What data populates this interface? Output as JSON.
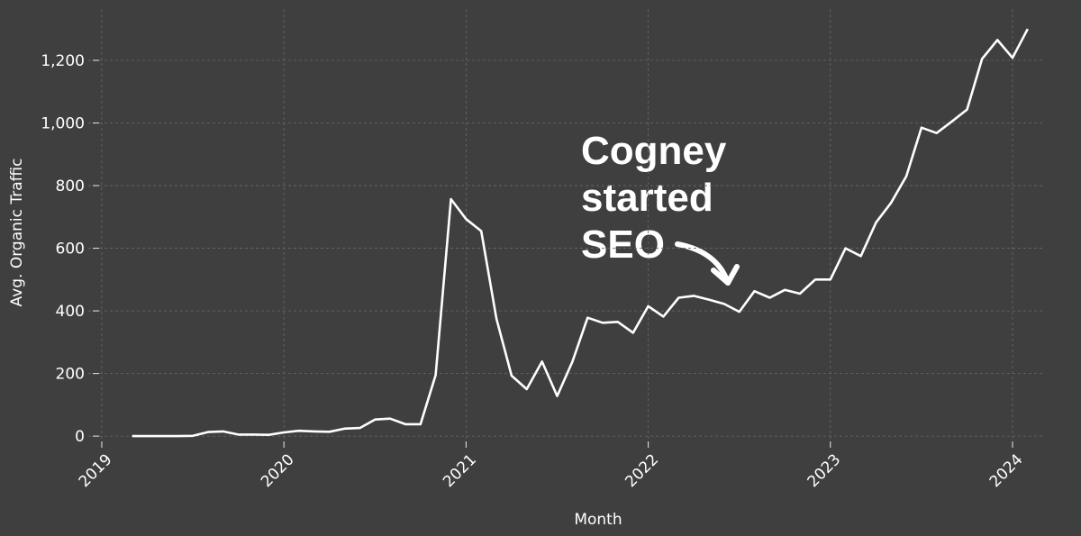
{
  "chart_data": {
    "type": "line",
    "x_label": "Month",
    "y_label": "Avg. Organic Traffic",
    "annotation": [
      "Cogney",
      "started",
      "SEO"
    ],
    "grid": true,
    "xlim": [
      2018.926,
      2024.178
    ],
    "xticks": [
      2019,
      2020,
      2021,
      2022,
      2023,
      2024
    ],
    "ylim": [
      -37,
      1364
    ],
    "yticks": [
      0,
      200,
      400,
      600,
      800,
      {
        "value": 1000,
        "label": "1,000"
      },
      {
        "value": 1200,
        "label": "1,200"
      }
    ],
    "x": [
      2019.167,
      2019.25,
      2019.333,
      2019.417,
      2019.5,
      2019.583,
      2019.667,
      2019.75,
      2019.833,
      2019.917,
      2020.0,
      2020.083,
      2020.167,
      2020.25,
      2020.333,
      2020.417,
      2020.5,
      2020.583,
      2020.667,
      2020.75,
      2020.833,
      2020.917,
      2021.0,
      2021.083,
      2021.167,
      2021.25,
      2021.333,
      2021.417,
      2021.5,
      2021.583,
      2021.667,
      2021.75,
      2021.833,
      2021.917,
      2022.0,
      2022.083,
      2022.167,
      2022.25,
      2022.333,
      2022.417,
      2022.5,
      2022.583,
      2022.667,
      2022.75,
      2022.833,
      2022.917,
      2023.0,
      2023.083,
      2023.167,
      2023.25,
      2023.333,
      2023.417,
      2023.5,
      2023.583,
      2023.667,
      2023.75,
      2023.833,
      2023.917,
      2024.0,
      2024.083
    ],
    "series": [
      {
        "color": "#ffffff",
        "values": [
          0,
          0,
          0,
          0,
          1,
          13,
          15,
          5,
          5,
          4,
          12,
          17,
          15,
          14,
          24,
          26,
          53,
          56,
          38,
          38,
          195,
          757,
          693,
          655,
          375,
          193,
          150,
          238,
          128,
          237,
          378,
          362,
          365,
          330,
          415,
          382,
          442,
          448,
          436,
          422,
          397,
          463,
          442,
          467,
          455,
          500,
          500,
          600,
          575,
          682,
          745,
          830,
          985,
          968,
          1005,
          1043,
          1205,
          1265,
          1208,
          1300
        ]
      }
    ]
  }
}
